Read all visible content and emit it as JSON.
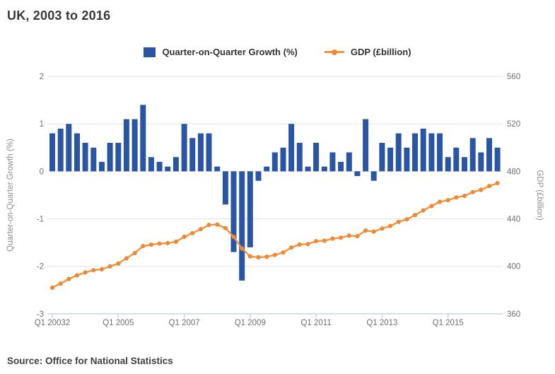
{
  "title": "UK, 2003 to 2016",
  "source": "Source: Office for National Statistics",
  "legend": [
    {
      "label": "Quarter-on-Quarter Growth (%)",
      "marker": "bar-swatch-icon",
      "color": "#2A55A4"
    },
    {
      "label": "GDP (£billion)",
      "marker": "line-marker-icon",
      "color": "#F2943E"
    }
  ],
  "colors": {
    "bar": "#2A55A4",
    "line": "#F2943E",
    "marker": "#ED8A33",
    "gridline": "#E3E3E3",
    "axis_line": "#C2D1DA",
    "tick_text": "#6F6F6F",
    "axis_title_text": "#8E8E8E"
  },
  "chart_data": {
    "type": "bar",
    "subtype": "bar+line dual-axis",
    "title": "UK, 2003 to 2016",
    "grid": true,
    "legend_position": "top",
    "categories": [
      "Q1 2003",
      "Q2 2003",
      "Q3 2003",
      "Q4 2003",
      "Q1 2004",
      "Q2 2004",
      "Q3 2004",
      "Q4 2004",
      "Q1 2005",
      "Q2 2005",
      "Q3 2005",
      "Q4 2005",
      "Q1 2006",
      "Q2 2006",
      "Q3 2006",
      "Q4 2006",
      "Q1 2007",
      "Q2 2007",
      "Q3 2007",
      "Q4 2007",
      "Q1 2008",
      "Q2 2008",
      "Q3 2008",
      "Q4 2008",
      "Q1 2009",
      "Q2 2009",
      "Q3 2009",
      "Q4 2009",
      "Q1 2010",
      "Q2 2010",
      "Q3 2010",
      "Q4 2010",
      "Q1 2011",
      "Q2 2011",
      "Q3 2011",
      "Q4 2011",
      "Q1 2012",
      "Q2 2012",
      "Q3 2012",
      "Q4 2012",
      "Q1 2013",
      "Q2 2013",
      "Q3 2013",
      "Q4 2013",
      "Q1 2014",
      "Q2 2014",
      "Q3 2014",
      "Q4 2014",
      "Q1 2015",
      "Q2 2015",
      "Q3 2015",
      "Q4 2015",
      "Q1 2016",
      "Q2 2016",
      "Q3 2016"
    ],
    "series": [
      {
        "name": "Quarter-on-Quarter Growth (%)",
        "type": "bar",
        "axis": "left",
        "color": "#2A55A4",
        "values": [
          0.8,
          0.9,
          1.0,
          0.8,
          0.6,
          0.5,
          0.2,
          0.6,
          0.6,
          1.1,
          1.1,
          1.4,
          0.3,
          0.2,
          0.1,
          0.3,
          1.0,
          0.7,
          0.8,
          0.8,
          0.1,
          -0.7,
          -1.7,
          -2.3,
          -1.6,
          -0.2,
          0.1,
          0.4,
          0.5,
          1.0,
          0.6,
          0.1,
          0.6,
          0.1,
          0.4,
          0.2,
          0.4,
          -0.1,
          1.1,
          -0.2,
          0.6,
          0.5,
          0.8,
          0.5,
          0.8,
          0.9,
          0.8,
          0.8,
          0.3,
          0.5,
          0.3,
          0.7,
          0.4,
          0.7,
          0.5
        ]
      },
      {
        "name": "GDP (£billion)",
        "type": "line",
        "axis": "right",
        "color": "#F2943E",
        "values": [
          382.0,
          385.4,
          389.3,
          392.4,
          394.8,
          396.7,
          397.5,
          399.9,
          402.3,
          406.7,
          411.2,
          417.0,
          418.2,
          419.1,
          419.5,
          420.7,
          424.9,
          427.9,
          431.3,
          434.8,
          435.2,
          432.2,
          424.8,
          415.0,
          408.4,
          407.6,
          408.0,
          409.6,
          411.6,
          415.8,
          418.3,
          418.7,
          421.2,
          421.6,
          423.3,
          424.1,
          425.8,
          425.4,
          430.1,
          429.2,
          431.8,
          434.0,
          437.4,
          439.6,
          443.1,
          447.1,
          450.7,
          454.3,
          455.7,
          458.0,
          459.3,
          462.5,
          464.4,
          467.6,
          470.0
        ]
      }
    ],
    "left_axis": {
      "label": "Quarter-on-Quarter Growth (%)",
      "min": -3,
      "max": 2,
      "ticks": [
        2,
        1,
        0,
        -1,
        -2,
        -3
      ]
    },
    "right_axis": {
      "label": "GDP (£billion)",
      "min": 360,
      "max": 560,
      "ticks": [
        560,
        520,
        480,
        440,
        400,
        360
      ]
    },
    "x_axis": {
      "tick_labels": [
        "Q1 20032",
        "Q1 2005",
        "Q1 2007",
        "Q1 2009",
        "Q1 2011",
        "Q1 2013",
        "Q1 2015"
      ],
      "tick_indices": [
        0,
        8,
        16,
        24,
        32,
        40,
        48
      ]
    }
  }
}
